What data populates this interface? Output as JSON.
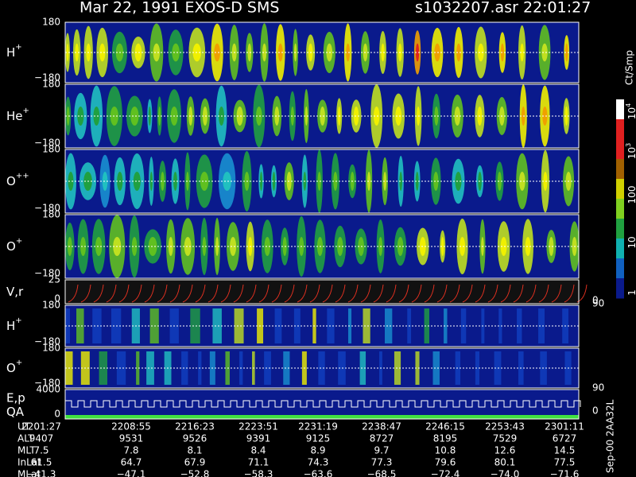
{
  "header": {
    "title": "Mar 22, 1991   EXOS-D SMS",
    "file": "s1032207.asr  22:01:27"
  },
  "panels": [
    {
      "label": "H",
      "sup": "+",
      "ticks": [
        "180",
        "−180"
      ]
    },
    {
      "label": "He",
      "sup": "+",
      "ticks": [
        "180",
        "−180"
      ]
    },
    {
      "label": "O",
      "sup": "++",
      "ticks": [
        "180",
        "−180"
      ]
    },
    {
      "label": "O",
      "sup": "+",
      "ticks": [
        "180",
        "−180"
      ]
    },
    {
      "label": "V,r",
      "ticks": [
        "25",
        "0"
      ],
      "right_ticks": [
        "90",
        "0"
      ]
    },
    {
      "label": "H",
      "sup": "+",
      "ticks": [
        "180",
        "−180"
      ]
    },
    {
      "label": "O",
      "sup": "+",
      "ticks": [
        "180",
        "−180"
      ],
      "right_ticks": [
        "90"
      ]
    },
    {
      "label": "E,p",
      "label2": "QA",
      "ticks": [
        "4000",
        "0"
      ],
      "right_ticks": [
        "0"
      ]
    }
  ],
  "colorbar": {
    "unit": "Ct/Smp",
    "ticks": [
      {
        "base": "10",
        "exp": "4"
      },
      {
        "base": "10",
        "exp": "3"
      },
      {
        "base": "100"
      },
      {
        "base": "10"
      },
      {
        "base": "1"
      }
    ]
  },
  "table": {
    "rows": [
      {
        "label": "UT",
        "values": [
          "2201:27",
          "2208:55",
          "2216:23",
          "2223:51",
          "2231:19",
          "2238:47",
          "2246:15",
          "2253:43",
          "2301:11"
        ]
      },
      {
        "label": "ALT",
        "values": [
          "9407",
          "9531",
          "9526",
          "9391",
          "9125",
          "8727",
          "8195",
          "7529",
          "6727"
        ]
      },
      {
        "label": "MLT",
        "values": [
          "7.5",
          "7.8",
          "8.1",
          "8.4",
          "8.9",
          "9.7",
          "10.8",
          "12.6",
          "14.5"
        ]
      },
      {
        "label": "InLat",
        "values": [
          "61.5",
          "64.7",
          "67.9",
          "71.1",
          "74.3",
          "77.3",
          "79.6",
          "80.1",
          "77.5"
        ]
      },
      {
        "label": "MLat",
        "values": [
          "−41.3",
          "−47.1",
          "−52.8",
          "−58.3",
          "−63.6",
          "−68.5",
          "−72.4",
          "−74.0",
          "−71.6"
        ]
      }
    ]
  },
  "footer": "Sep-00  2AA32L"
}
